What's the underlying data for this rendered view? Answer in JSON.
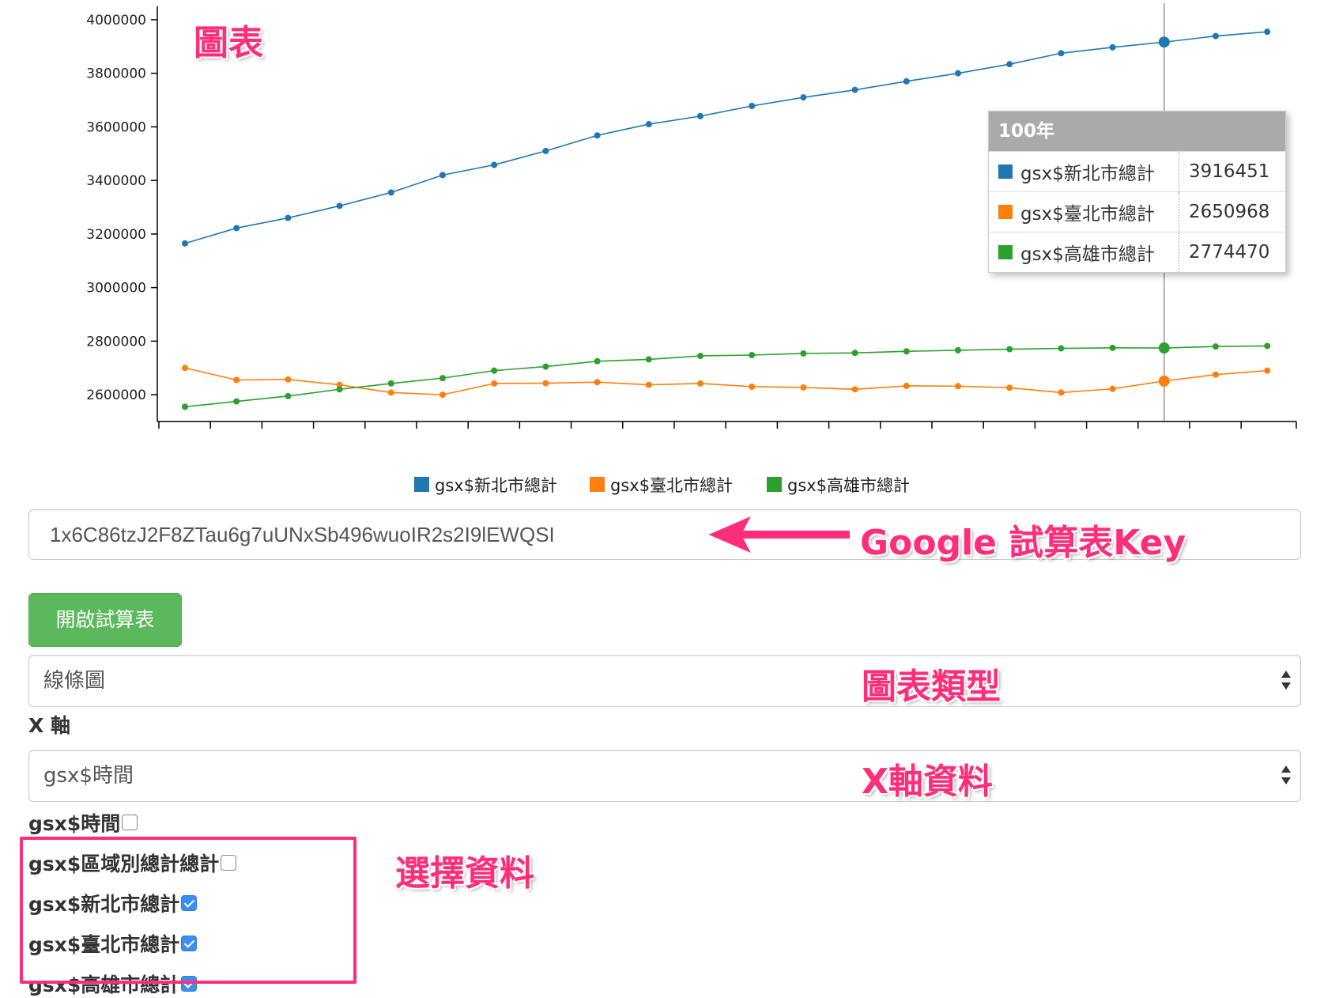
{
  "annotations": {
    "chart": "圖表",
    "sheet_key": "Google 試算表Key",
    "chart_type": "圖表類型",
    "x_axis_data": "X軸資料",
    "select_data": "選擇資料"
  },
  "colors": {
    "blue": "#1f77b4",
    "orange": "#ff7f0e",
    "green": "#2ca02c",
    "annotation": "#ff2d7a",
    "button_green": "#5cb85c"
  },
  "chart_data": {
    "type": "line",
    "ylim": [
      2500000,
      4050000
    ],
    "yticks": [
      2600000,
      2800000,
      3000000,
      3200000,
      3400000,
      3600000,
      3800000,
      4000000
    ],
    "y_ticklabels": [
      "2600000",
      "2800000",
      "3000000",
      "3200000",
      "3400000",
      "3600000",
      "3800000",
      "4000000"
    ],
    "x_ticklabels_note": "",
    "series": [
      {
        "name": "gsx$新北市總計",
        "color": "#1f77b4",
        "values": [
          3165000,
          3222000,
          3260000,
          3305000,
          3355000,
          3420000,
          3458000,
          3510000,
          3568000,
          3610000,
          3640000,
          3678000,
          3710000,
          3738000,
          3770000,
          3800000,
          3834000,
          3875000,
          3897000,
          3916451,
          3939000,
          3955000
        ]
      },
      {
        "name": "gsx$臺北市總計",
        "color": "#ff7f0e",
        "values": [
          2700000,
          2655000,
          2657000,
          2637000,
          2608000,
          2600000,
          2642000,
          2643000,
          2647000,
          2637000,
          2642000,
          2630000,
          2627000,
          2620000,
          2633000,
          2632000,
          2626000,
          2608000,
          2622000,
          2650968,
          2675000,
          2690000
        ]
      },
      {
        "name": "gsx$高雄市總計",
        "color": "#2ca02c",
        "values": [
          2555000,
          2575000,
          2595000,
          2620000,
          2642000,
          2662000,
          2690000,
          2705000,
          2725000,
          2732000,
          2745000,
          2748000,
          2754000,
          2756000,
          2762000,
          2766000,
          2770000,
          2773000,
          2775000,
          2774470,
          2780000,
          2782000
        ]
      }
    ],
    "tooltip": {
      "title": "100年",
      "rows": [
        {
          "name": "gsx$新北市總計",
          "value": "3916451",
          "color": "#1f77b4"
        },
        {
          "name": "gsx$臺北市總計",
          "value": "2650968",
          "color": "#ff7f0e"
        },
        {
          "name": "gsx$高雄市總計",
          "value": "2774470",
          "color": "#2ca02c"
        }
      ]
    },
    "legend": [
      "gsx$新北市總計",
      "gsx$臺北市總計",
      "gsx$高雄市總計"
    ],
    "legend_position": "bottom-center",
    "highlight_index": 19
  },
  "form": {
    "sheet_key_value": "1x6C86tzJ2F8ZTau6g7uUNxSb496wuoIR2s2I9lEWQSI",
    "open_button": "開啟試算表",
    "chart_type_selected": "線條圖",
    "x_axis_label": "X 軸",
    "x_axis_selected": "gsx$時間",
    "checkboxes": [
      {
        "label": "gsx$時間",
        "checked": false
      },
      {
        "label": "gsx$區域別總計總計",
        "checked": false
      },
      {
        "label": "gsx$新北市總計",
        "checked": true
      },
      {
        "label": "gsx$臺北市總計",
        "checked": true
      },
      {
        "label": "gsx$高雄市總計",
        "checked": true
      }
    ]
  }
}
